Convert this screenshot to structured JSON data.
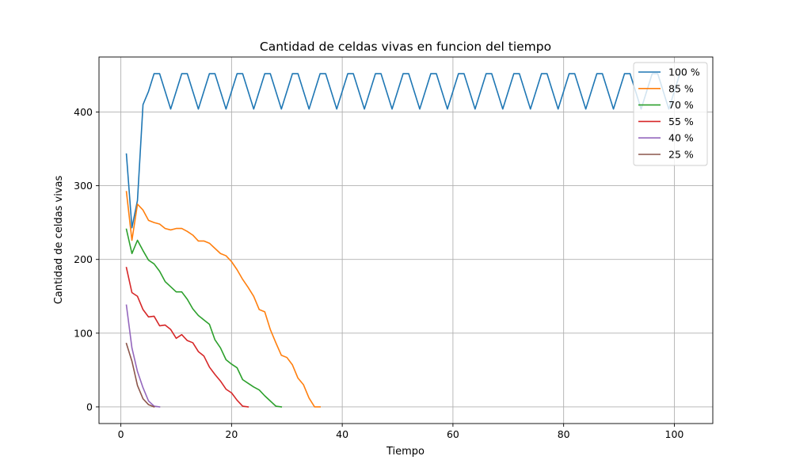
{
  "chart_data": {
    "type": "line",
    "title": "Cantidad de celdas vivas en funcion del tiempo",
    "xlabel": "Tiempo",
    "ylabel": "Cantidad de celdas vivas",
    "xlim": [
      -3.95,
      106.95
    ],
    "ylim": [
      -22.6,
      474.6
    ],
    "xticks": [
      0,
      20,
      40,
      60,
      80,
      100
    ],
    "yticks": [
      0,
      100,
      200,
      300,
      400
    ],
    "grid": true,
    "legend_position": "top-right",
    "series": [
      {
        "name": "100 %",
        "color": "#1f77b4",
        "x": [
          1,
          2,
          3,
          4,
          5,
          6,
          7,
          8,
          9,
          10,
          11,
          12,
          13,
          14,
          15,
          16,
          17,
          18,
          19,
          20,
          21,
          22,
          23,
          24,
          25,
          26,
          27,
          28,
          29,
          30,
          31,
          32,
          33,
          34,
          35,
          36,
          37,
          38,
          39,
          40,
          41,
          42,
          43,
          44,
          45,
          46,
          47,
          48,
          49,
          50,
          51,
          52,
          53,
          54,
          55,
          56,
          57,
          58,
          59,
          60,
          61,
          62,
          63,
          64,
          65,
          66,
          67,
          68,
          69,
          70,
          71,
          72,
          73,
          74,
          75,
          76,
          77,
          78,
          79,
          80,
          81,
          82,
          83,
          84,
          85,
          86,
          87,
          88,
          89,
          90,
          91,
          92,
          93,
          94,
          95,
          96,
          97,
          98,
          99,
          100,
          101
        ],
        "y": [
          343,
          243,
          280,
          410,
          428,
          452,
          452,
          428,
          404,
          428,
          452,
          452,
          428,
          404,
          428,
          452,
          452,
          428,
          404,
          428,
          452,
          452,
          428,
          404,
          428,
          452,
          452,
          428,
          404,
          428,
          452,
          452,
          428,
          404,
          428,
          452,
          452,
          428,
          404,
          428,
          452,
          452,
          428,
          404,
          428,
          452,
          452,
          428,
          404,
          428,
          452,
          452,
          428,
          404,
          428,
          452,
          452,
          428,
          404,
          428,
          452,
          452,
          428,
          404,
          428,
          452,
          452,
          428,
          404,
          428,
          452,
          452,
          428,
          404,
          428,
          452,
          452,
          428,
          404,
          428,
          452,
          452,
          428,
          404,
          428,
          452,
          452,
          428,
          404,
          428,
          452,
          452,
          428,
          404,
          428,
          452,
          452,
          428,
          404,
          428,
          452
        ]
      },
      {
        "name": "85 %",
        "color": "#ff7f0e",
        "x": [
          1,
          2,
          3,
          4,
          5,
          6,
          7,
          8,
          9,
          10,
          11,
          12,
          13,
          14,
          15,
          16,
          17,
          18,
          19,
          20,
          21,
          22,
          23,
          24,
          25,
          26,
          27,
          28,
          29,
          30,
          31,
          32,
          33,
          34,
          35,
          36
        ],
        "y": [
          292,
          226,
          275,
          267,
          253,
          250,
          248,
          242,
          240,
          242,
          242,
          238,
          233,
          225,
          225,
          222,
          215,
          208,
          205,
          197,
          186,
          173,
          162,
          150,
          132,
          129,
          105,
          87,
          70,
          67,
          57,
          39,
          30,
          12,
          0,
          0
        ]
      },
      {
        "name": "70 %",
        "color": "#2ca02c",
        "x": [
          1,
          2,
          3,
          4,
          5,
          6,
          7,
          8,
          9,
          10,
          11,
          12,
          13,
          14,
          15,
          16,
          17,
          18,
          19,
          20,
          21,
          22,
          23,
          24,
          25,
          26,
          27,
          28,
          29
        ],
        "y": [
          241,
          208,
          226,
          212,
          199,
          194,
          184,
          170,
          163,
          156,
          156,
          146,
          133,
          124,
          118,
          112,
          91,
          80,
          64,
          58,
          53,
          37,
          32,
          27,
          23,
          15,
          8,
          1,
          0
        ]
      },
      {
        "name": "55 %",
        "color": "#d62728",
        "x": [
          1,
          2,
          3,
          4,
          5,
          6,
          7,
          8,
          9,
          10,
          11,
          12,
          13,
          14,
          15,
          16,
          17,
          18,
          19,
          20,
          21,
          22,
          23
        ],
        "y": [
          189,
          155,
          150,
          132,
          122,
          123,
          110,
          111,
          105,
          93,
          98,
          90,
          87,
          75,
          69,
          54,
          44,
          35,
          24,
          19,
          9,
          1,
          0
        ]
      },
      {
        "name": "40 %",
        "color": "#9467bd",
        "x": [
          1,
          2,
          3,
          4,
          5,
          6,
          7
        ],
        "y": [
          138,
          80,
          48,
          26,
          8,
          1,
          0
        ]
      },
      {
        "name": "25 %",
        "color": "#8c564b",
        "x": [
          1,
          2,
          3,
          4,
          5,
          6
        ],
        "y": [
          86,
          62,
          29,
          11,
          3,
          0
        ]
      }
    ]
  }
}
